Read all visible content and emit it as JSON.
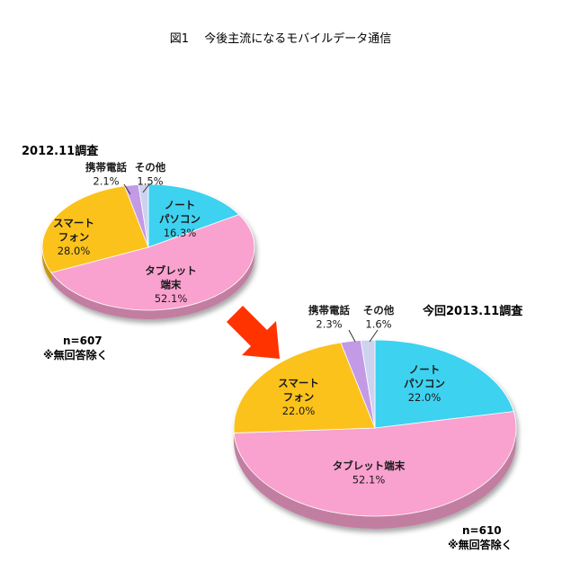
{
  "title": "図1　 今後主流になるモバイルデータ通信",
  "arrow_color": "#ff3300",
  "chart_data": [
    {
      "type": "pie",
      "survey_label": "2012.11調査",
      "sample_note": "n=607",
      "exclusion_note": "※無回答除く",
      "slices": [
        {
          "label": "ノート\nパソコン",
          "value": 16.3,
          "value_text": "16.3%",
          "color": "#3cd2f0"
        },
        {
          "label": "タブレット\n端末",
          "value": 52.1,
          "value_text": "52.1%",
          "color": "#f9a1cf"
        },
        {
          "label": "スマート\nフォン",
          "value": 28.0,
          "value_text": "28.0%",
          "color": "#fbc21c"
        },
        {
          "label": "携帯電話",
          "value": 2.1,
          "value_text": "2.1%",
          "color": "#c39ae6"
        },
        {
          "label": "その他",
          "value": 1.5,
          "value_text": "1.5%",
          "color": "#cdd3ef"
        }
      ]
    },
    {
      "type": "pie",
      "survey_label": "今回2013.11調査",
      "sample_note": "n=610",
      "exclusion_note": "※無回答除く",
      "slices": [
        {
          "label": "ノート\nパソコン",
          "value": 22.0,
          "value_text": "22.0%",
          "color": "#3cd2f0"
        },
        {
          "label": "タブレット端末",
          "value": 52.1,
          "value_text": "52.1%",
          "color": "#f9a1cf"
        },
        {
          "label": "スマート\nフォン",
          "value": 22.0,
          "value_text": "22.0%",
          "color": "#fbc21c"
        },
        {
          "label": "携帯電話",
          "value": 2.3,
          "value_text": "2.3%",
          "color": "#c39ae6"
        },
        {
          "label": "その他",
          "value": 1.6,
          "value_text": "1.6%",
          "color": "#cdd3ef"
        }
      ]
    }
  ]
}
